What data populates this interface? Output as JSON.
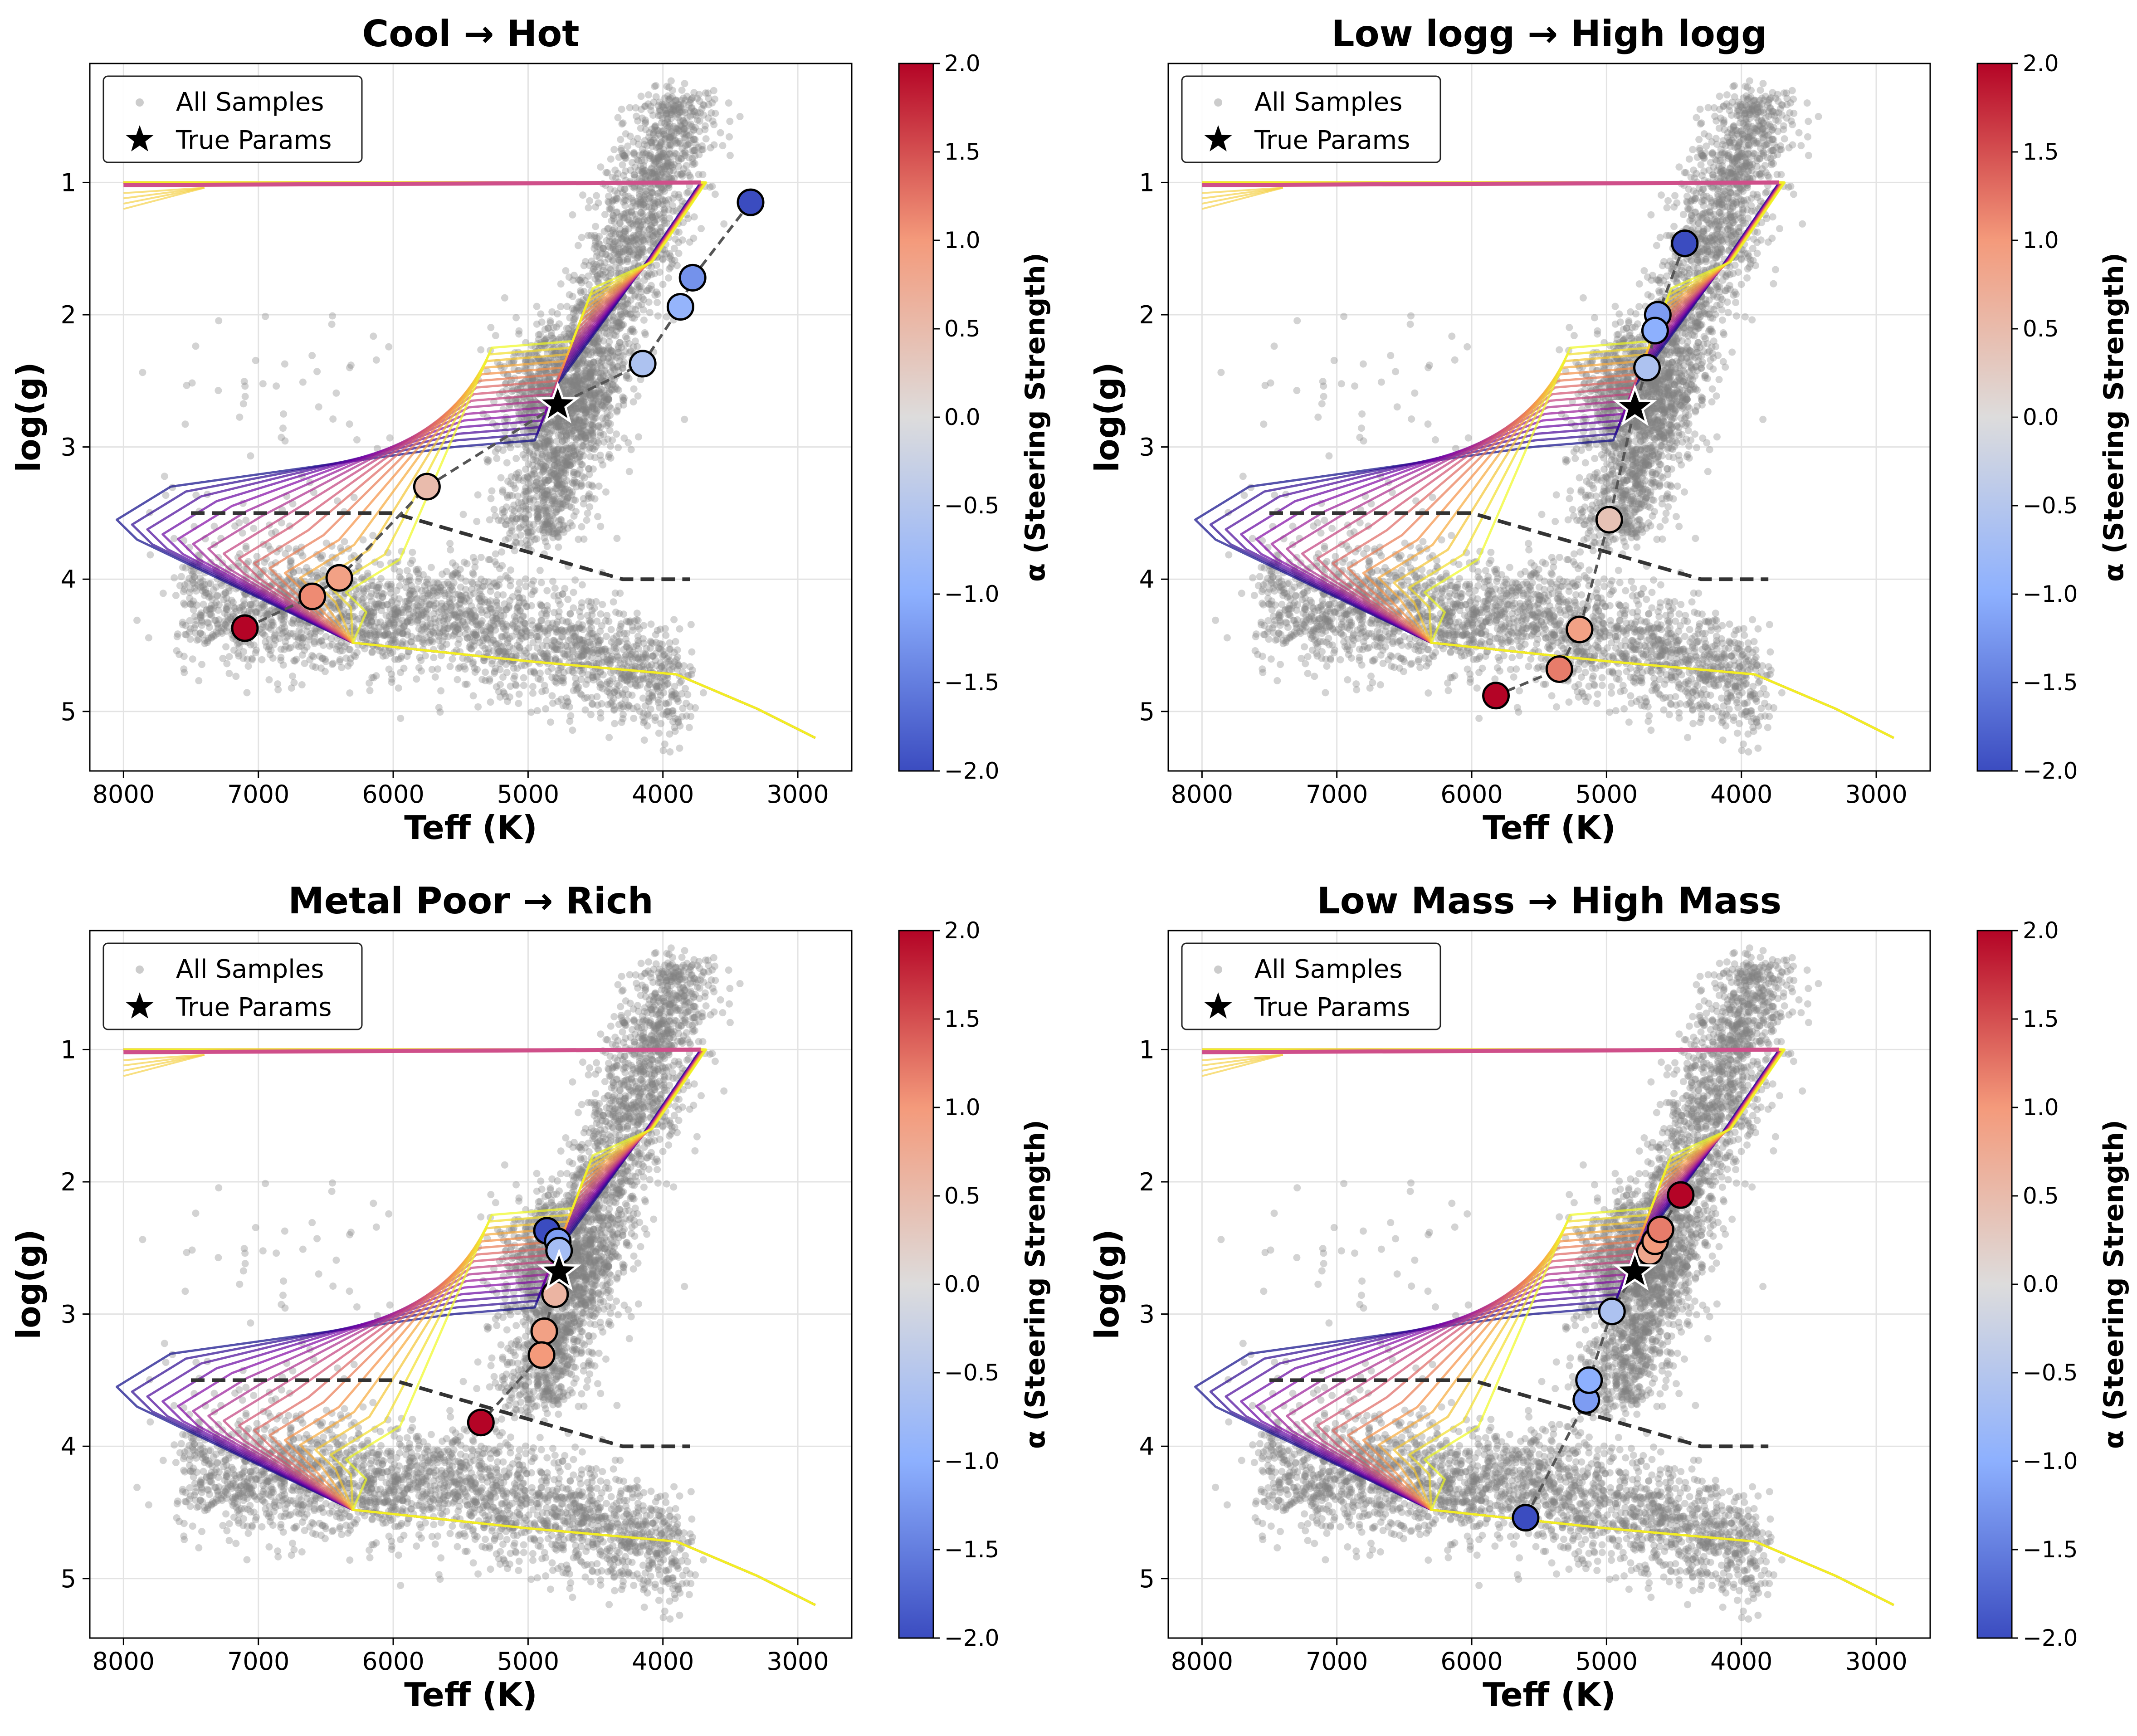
{
  "chart_data": [
    {
      "type": "scatter",
      "title": "Cool → Hot",
      "xlabel": "Teff (K)",
      "ylabel": "log(g)",
      "xlim": [
        8250,
        2600
      ],
      "ylim": [
        0.1,
        5.45
      ],
      "xticks": [
        8000,
        7000,
        6000,
        5000,
        4000,
        3000
      ],
      "yticks": [
        1,
        2,
        3,
        4,
        5
      ],
      "grid": true,
      "legend": {
        "position": "top-left",
        "entries": [
          "All Samples",
          "True Params"
        ]
      },
      "colorbar": {
        "label": "α (Steering Strength)",
        "range": [
          -2.0,
          2.0
        ],
        "ticks": [
          "−2.0",
          "−1.5",
          "−1.0",
          "−0.5",
          "0.0",
          "0.5",
          "1.0",
          "1.5",
          "2.0"
        ]
      },
      "true_params": {
        "teff": 4780,
        "logg": 2.68
      },
      "steering_points": [
        {
          "teff": 3350,
          "logg": 1.15,
          "alpha": -2.0
        },
        {
          "teff": 3780,
          "logg": 1.72,
          "alpha": -1.3
        },
        {
          "teff": 3870,
          "logg": 1.94,
          "alpha": -0.9
        },
        {
          "teff": 4150,
          "logg": 2.37,
          "alpha": -0.6
        },
        {
          "teff": 5750,
          "logg": 3.3,
          "alpha": 0.5
        },
        {
          "teff": 6400,
          "logg": 3.99,
          "alpha": 0.9
        },
        {
          "teff": 6600,
          "logg": 4.13,
          "alpha": 1.1
        },
        {
          "teff": 7100,
          "logg": 4.37,
          "alpha": 2.0
        }
      ]
    },
    {
      "type": "scatter",
      "title": "Low logg → High logg",
      "xlabel": "Teff (K)",
      "ylabel": "log(g)",
      "xlim": [
        8250,
        2600
      ],
      "ylim": [
        0.1,
        5.45
      ],
      "xticks": [
        8000,
        7000,
        6000,
        5000,
        4000,
        3000
      ],
      "yticks": [
        1,
        2,
        3,
        4,
        5
      ],
      "grid": true,
      "legend": {
        "position": "top-left",
        "entries": [
          "All Samples",
          "True Params"
        ]
      },
      "colorbar": {
        "label": "α (Steering Strength)",
        "range": [
          -2.0,
          2.0
        ],
        "ticks": [
          "−2.0",
          "−1.5",
          "−1.0",
          "−0.5",
          "0.0",
          "0.5",
          "1.0",
          "1.5",
          "2.0"
        ]
      },
      "true_params": {
        "teff": 4790,
        "logg": 2.7
      },
      "steering_points": [
        {
          "teff": 4420,
          "logg": 1.46,
          "alpha": -2.0
        },
        {
          "teff": 4620,
          "logg": 2.0,
          "alpha": -1.2
        },
        {
          "teff": 4640,
          "logg": 2.12,
          "alpha": -1.0
        },
        {
          "teff": 4700,
          "logg": 2.4,
          "alpha": -0.6
        },
        {
          "teff": 4980,
          "logg": 3.55,
          "alpha": 0.4
        },
        {
          "teff": 5200,
          "logg": 4.38,
          "alpha": 0.9
        },
        {
          "teff": 5350,
          "logg": 4.68,
          "alpha": 1.2
        },
        {
          "teff": 5820,
          "logg": 4.88,
          "alpha": 2.0
        }
      ]
    },
    {
      "type": "scatter",
      "title": "Metal Poor → Rich",
      "xlabel": "Teff (K)",
      "ylabel": "log(g)",
      "xlim": [
        8250,
        2600
      ],
      "ylim": [
        0.1,
        5.45
      ],
      "xticks": [
        8000,
        7000,
        6000,
        5000,
        4000,
        3000
      ],
      "yticks": [
        1,
        2,
        3,
        4,
        5
      ],
      "grid": true,
      "legend": {
        "position": "top-left",
        "entries": [
          "All Samples",
          "True Params"
        ]
      },
      "colorbar": {
        "label": "α (Steering Strength)",
        "range": [
          -2.0,
          2.0
        ],
        "ticks": [
          "−2.0",
          "−1.5",
          "−1.0",
          "−0.5",
          "0.0",
          "0.5",
          "1.0",
          "1.5",
          "2.0"
        ]
      },
      "true_params": {
        "teff": 4770,
        "logg": 2.68
      },
      "steering_points": [
        {
          "teff": 4860,
          "logg": 2.37,
          "alpha": -2.0
        },
        {
          "teff": 4780,
          "logg": 2.45,
          "alpha": -1.2
        },
        {
          "teff": 4770,
          "logg": 2.52,
          "alpha": -0.7
        },
        {
          "teff": 4800,
          "logg": 2.85,
          "alpha": 0.6
        },
        {
          "teff": 4880,
          "logg": 3.13,
          "alpha": 0.9
        },
        {
          "teff": 4900,
          "logg": 3.31,
          "alpha": 1.0
        },
        {
          "teff": 5350,
          "logg": 3.82,
          "alpha": 2.0
        }
      ]
    },
    {
      "type": "scatter",
      "title": "Low Mass → High Mass",
      "xlabel": "Teff (K)",
      "ylabel": "log(g)",
      "xlim": [
        8250,
        2600
      ],
      "ylim": [
        0.1,
        5.45
      ],
      "xticks": [
        8000,
        7000,
        6000,
        5000,
        4000,
        3000
      ],
      "yticks": [
        1,
        2,
        3,
        4,
        5
      ],
      "grid": true,
      "legend": {
        "position": "top-left",
        "entries": [
          "All Samples",
          "True Params"
        ]
      },
      "colorbar": {
        "label": "α (Steering Strength)",
        "range": [
          -2.0,
          2.0
        ],
        "ticks": [
          "−2.0",
          "−1.5",
          "−1.0",
          "−0.5",
          "0.0",
          "0.5",
          "1.0",
          "1.5",
          "2.0"
        ]
      },
      "true_params": {
        "teff": 4790,
        "logg": 2.68
      },
      "steering_points": [
        {
          "teff": 5600,
          "logg": 4.54,
          "alpha": -2.0
        },
        {
          "teff": 5150,
          "logg": 3.65,
          "alpha": -1.2
        },
        {
          "teff": 5130,
          "logg": 3.5,
          "alpha": -1.0
        },
        {
          "teff": 4960,
          "logg": 2.98,
          "alpha": -0.6
        },
        {
          "teff": 4680,
          "logg": 2.53,
          "alpha": 0.8
        },
        {
          "teff": 4640,
          "logg": 2.45,
          "alpha": 1.0
        },
        {
          "teff": 4600,
          "logg": 2.36,
          "alpha": 1.2
        },
        {
          "teff": 4450,
          "logg": 2.1,
          "alpha": 2.0
        }
      ]
    }
  ]
}
